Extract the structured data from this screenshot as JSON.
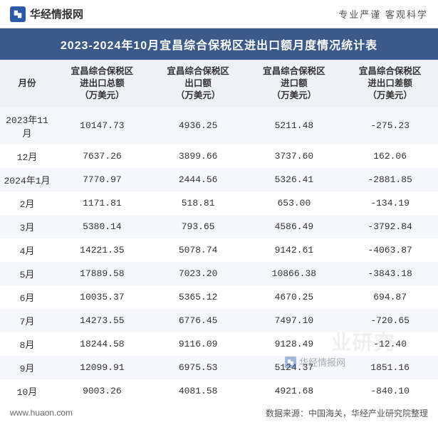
{
  "header": {
    "site_name": "华经情报网",
    "tagline": "专业严谨   客观科学"
  },
  "title": "2023-2024年10月宜昌综合保税区进出口额月度情况统计表",
  "table": {
    "columns": [
      "月份",
      "宜昌综合保税区\n进出口总额\n（万美元）",
      "宜昌综合保税区\n出口额\n（万美元）",
      "宜昌综合保税区\n进口额\n（万美元）",
      "宜昌综合保税区\n进出口差额\n（万美元）"
    ],
    "rows": [
      [
        "2023年11月",
        "10147.73",
        "4936.25",
        "5211.48",
        "-275.23"
      ],
      [
        "12月",
        "7637.26",
        "3899.66",
        "3737.60",
        "162.06"
      ],
      [
        "2024年1月",
        "7770.97",
        "2444.56",
        "5326.41",
        "-2881.85"
      ],
      [
        "2月",
        "1171.81",
        "518.81",
        "653.00",
        "-134.19"
      ],
      [
        "3月",
        "5380.14",
        "793.65",
        "4586.49",
        "-3792.84"
      ],
      [
        "4月",
        "14221.35",
        "5078.74",
        "9142.61",
        "-4063.87"
      ],
      [
        "5月",
        "17889.58",
        "7023.20",
        "10866.38",
        "-3843.18"
      ],
      [
        "6月",
        "10035.37",
        "5365.12",
        "4670.25",
        "694.87"
      ],
      [
        "7月",
        "14273.55",
        "6776.45",
        "7497.10",
        "-720.65"
      ],
      [
        "8月",
        "18244.58",
        "9116.09",
        "9128.49",
        "-12.40"
      ],
      [
        "9月",
        "12099.91",
        "6975.53",
        "5124.37",
        "1851.16"
      ],
      [
        "10月",
        "9003.26",
        "4081.58",
        "4921.68",
        "-840.10"
      ]
    ]
  },
  "footer": {
    "url": "www.huaon.com",
    "source": "数据来源：中国海关，华经产业研究院整理"
  },
  "watermark": {
    "text_large": "业研究",
    "text_small": "华经情报网"
  },
  "styling": {
    "title_bg": "#3b5a8a",
    "title_color": "#ffffff",
    "header_row_bg": "#eef1f6",
    "row_odd_bg": "#f5f7fa",
    "row_even_bg": "#ffffff",
    "text_color": "#333333",
    "logo_bg": "#2b5ba8",
    "body_font_size": 13,
    "header_font_size": 12.5,
    "title_font_size": 16
  }
}
